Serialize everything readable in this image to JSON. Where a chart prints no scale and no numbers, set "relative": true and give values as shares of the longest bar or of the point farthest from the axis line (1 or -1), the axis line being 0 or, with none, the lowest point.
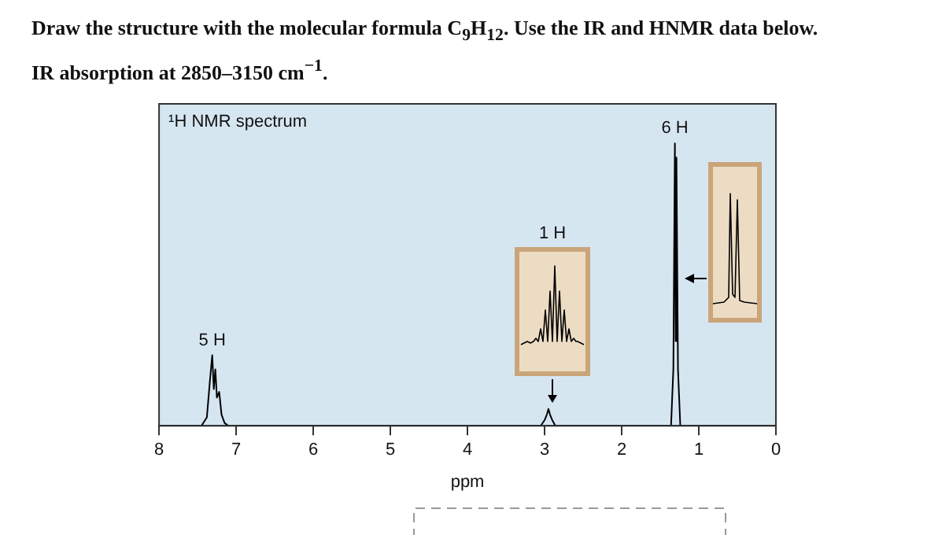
{
  "chart_data": {
    "type": "line",
    "title": "Draw the structure with the molecular formula C$_{9}$H$_{12}$. Use the IR and HNMR data below.",
    "subtitle": "IR absorption at 2850–3150 cm$^{−1}$.",
    "xlabel": "ppm",
    "x": [
      8,
      7.45,
      7.38,
      7.34,
      7.31,
      7.29,
      7.27,
      7.25,
      7.22,
      7.19,
      7.15,
      7.1,
      3.05,
      3.0,
      2.97,
      2.95,
      2.93,
      2.9,
      2.86,
      1.36,
      1.33,
      1.31,
      1.3,
      1.29,
      1.27,
      1.24,
      0
    ],
    "series": [
      {
        "color": "#000000",
        "values": [
          0,
          0,
          0.03,
          0.16,
          0.25,
          0.13,
          0.2,
          0.1,
          0.12,
          0.04,
          0.01,
          0,
          0,
          0.02,
          0.04,
          0.06,
          0.04,
          0.02,
          0,
          0,
          0.2,
          1,
          0.3,
          0.95,
          0.2,
          0,
          0
        ]
      }
    ],
    "relative": true,
    "xlim": [
      8,
      0
    ],
    "xticks": [
      8,
      7,
      6,
      5,
      4,
      3,
      2,
      1,
      0
    ],
    "grid": false,
    "legend": false,
    "marker": "none",
    "annotations": [
      "¹H NMR spectrum",
      {
        "text": "5 H",
        "x": 7.31,
        "y": 0.25
      },
      "1 H",
      {
        "text": "6 H",
        "x": 1.31,
        "y": 1
      }
    ]
  }
}
